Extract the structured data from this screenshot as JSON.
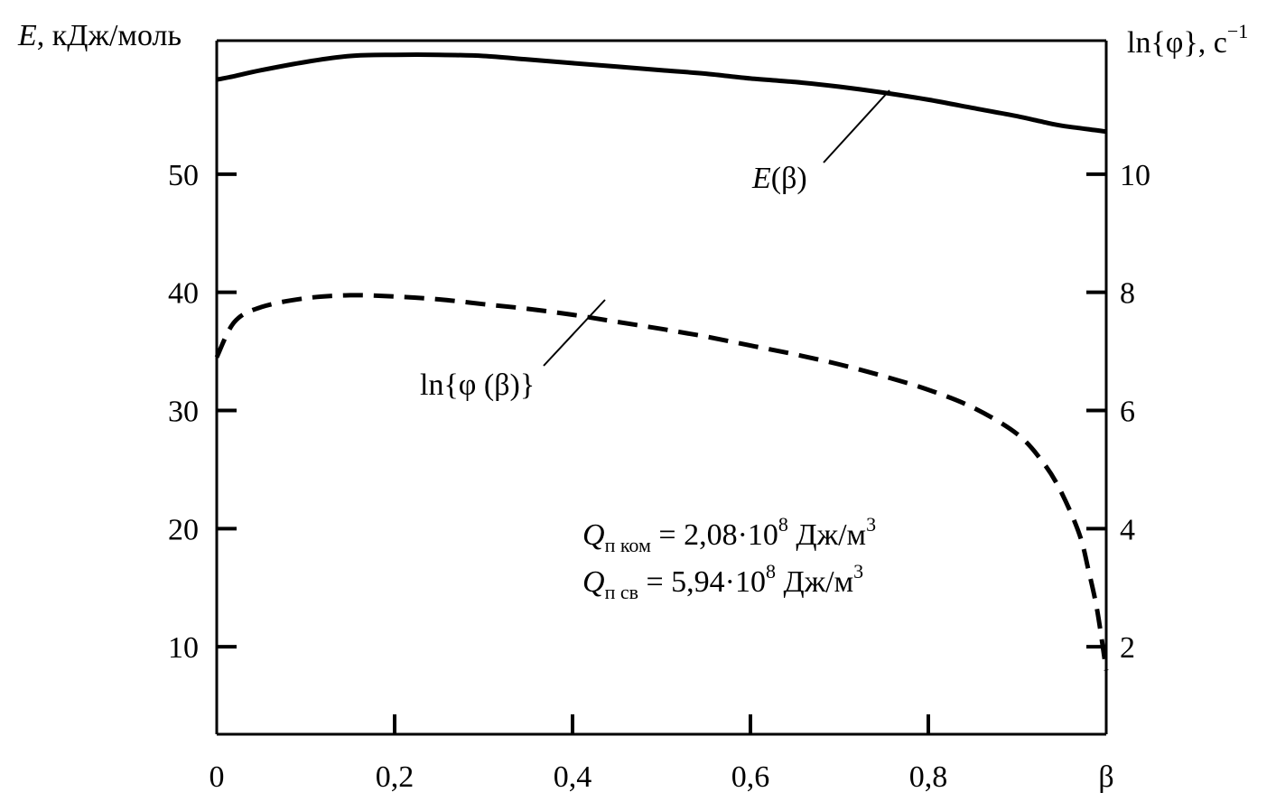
{
  "chart_data": {
    "type": "line",
    "x": [
      0.0,
      0.02,
      0.05,
      0.1,
      0.15,
      0.2,
      0.25,
      0.3,
      0.35,
      0.4,
      0.45,
      0.5,
      0.55,
      0.6,
      0.65,
      0.7,
      0.75,
      0.8,
      0.85,
      0.9,
      0.93,
      0.95,
      0.97,
      0.98,
      0.99,
      1.0
    ],
    "xlabel": "β",
    "xlim": [
      0,
      1
    ],
    "x_ticks": [
      {
        "value": 0,
        "label": "0"
      },
      {
        "value": 0.2,
        "label": "0,2"
      },
      {
        "value": 0.4,
        "label": "0,4"
      },
      {
        "value": 0.6,
        "label": "0,6"
      },
      {
        "value": 0.8,
        "label": "0,8"
      },
      {
        "value": 1.0,
        "label": "β"
      }
    ],
    "left_axis": {
      "label_italic": "E",
      "label_rest": ", кДж/моль",
      "ylim": [
        2.6,
        61.3
      ],
      "ticks": [
        {
          "value": 10,
          "label": "10"
        },
        {
          "value": 20,
          "label": "20"
        },
        {
          "value": 30,
          "label": "30"
        },
        {
          "value": 40,
          "label": "40"
        },
        {
          "value": 50,
          "label": "50"
        }
      ]
    },
    "right_axis": {
      "label_main": "ln{φ}, с",
      "label_sup": "−1",
      "ylim": [
        0.52,
        12.26
      ],
      "ticks": [
        {
          "value": 2,
          "label": "2"
        },
        {
          "value": 4,
          "label": "4"
        },
        {
          "value": 6,
          "label": "6"
        },
        {
          "value": 8,
          "label": "8"
        },
        {
          "value": 10,
          "label": "10"
        }
      ]
    },
    "series": [
      {
        "name": "E(β)",
        "name_italic": "E",
        "name_rest": "(β)",
        "axis": "left",
        "style": "solid",
        "values": [
          58.0,
          58.3,
          58.8,
          59.5,
          60.0,
          60.1,
          60.1,
          60.0,
          59.7,
          59.4,
          59.1,
          58.8,
          58.5,
          58.1,
          57.8,
          57.4,
          56.9,
          56.3,
          55.6,
          54.9,
          54.4,
          54.1,
          53.9,
          53.8,
          53.7,
          53.6
        ]
      },
      {
        "name": "ln{φ (β)}",
        "axis": "right",
        "style": "dashed",
        "values": [
          6.9,
          7.5,
          7.75,
          7.9,
          7.95,
          7.93,
          7.88,
          7.8,
          7.72,
          7.62,
          7.5,
          7.38,
          7.25,
          7.1,
          6.95,
          6.78,
          6.58,
          6.35,
          6.05,
          5.6,
          5.1,
          4.6,
          3.9,
          3.3,
          2.6,
          1.6
        ]
      }
    ],
    "annotations": [
      {
        "q": "Q",
        "sub": "п ком",
        "text": " = 2,08·10",
        "exp": "8",
        "unit": " Дж/м",
        "unit_exp": "3"
      },
      {
        "q": "Q",
        "sub": "п св",
        "text": " = 5,94·10",
        "exp": "8",
        "unit": " Дж/м",
        "unit_exp": "3"
      }
    ],
    "grid": false,
    "legend": "none"
  }
}
